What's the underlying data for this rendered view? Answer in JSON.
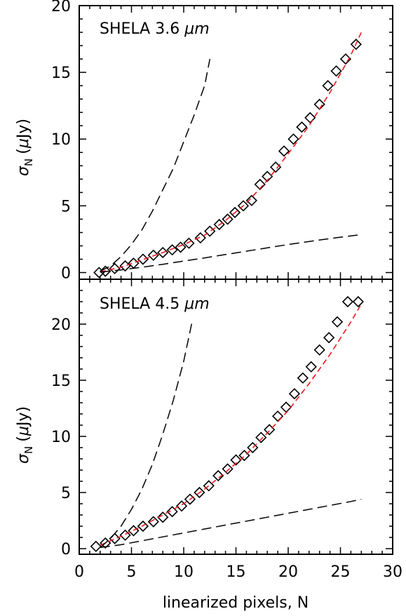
{
  "chart_data": [
    {
      "type": "scatter",
      "title": "SHELA 3.6 μm",
      "title_parts": {
        "prefix": "SHELA 3.6 ",
        "unit": "μm"
      },
      "ylabel": "σN (μJy)",
      "ylabel_parts": {
        "sigma": "σ",
        "sub": "N",
        "open": "(",
        "mu": "μ",
        "unit": "Jy)"
      },
      "xlim": [
        0,
        30
      ],
      "ylim": [
        -0.5,
        20
      ],
      "yticks": [
        0,
        5,
        10,
        15,
        20
      ],
      "series": [
        {
          "style": "diamond-markers",
          "x": [
            1.9,
            2.5,
            3.4,
            4.4,
            5.2,
            6.1,
            7.1,
            8.0,
            8.9,
            9.7,
            10.5,
            11.6,
            12.5,
            13.4,
            14.2,
            14.9,
            15.7,
            16.5,
            17.3,
            18.0,
            18.8,
            19.6,
            20.5,
            21.3,
            22.1,
            23.0,
            23.8,
            24.6,
            25.5,
            26.5
          ],
          "y": [
            0.0,
            0.1,
            0.3,
            0.5,
            0.7,
            1.0,
            1.3,
            1.5,
            1.7,
            1.9,
            2.2,
            2.6,
            3.1,
            3.6,
            4.0,
            4.5,
            5.0,
            5.4,
            6.6,
            7.2,
            7.9,
            9.1,
            10.0,
            10.9,
            11.6,
            12.6,
            14.0,
            15.1,
            16.0,
            17.1
          ]
        },
        {
          "style": "red-dashed-fit",
          "color": "#e8191e",
          "x": [
            2,
            4,
            6,
            8,
            10,
            12,
            14,
            16,
            18,
            20,
            22,
            24,
            26,
            27
          ],
          "y": [
            0.05,
            0.4,
            0.95,
            1.5,
            2.1,
            2.8,
            3.9,
            5.2,
            6.9,
            8.9,
            11.0,
            13.5,
            16.3,
            18.0
          ]
        },
        {
          "style": "black-dashed-upper",
          "x": [
            2,
            3,
            4,
            5,
            6,
            7,
            8,
            9,
            10,
            11,
            12,
            12.5
          ],
          "y": [
            0.1,
            0.5,
            1.2,
            2.1,
            3.2,
            4.6,
            6.2,
            7.8,
            9.8,
            11.8,
            14.0,
            16.0
          ]
        },
        {
          "style": "black-dashed-lower",
          "x": [
            2,
            4,
            6,
            8,
            10,
            12,
            14,
            16,
            18,
            20,
            22,
            24,
            26,
            27
          ],
          "y": [
            0.03,
            0.2,
            0.4,
            0.62,
            0.86,
            1.1,
            1.35,
            1.6,
            1.85,
            2.1,
            2.33,
            2.55,
            2.75,
            2.85
          ]
        }
      ]
    },
    {
      "type": "scatter",
      "title": "SHELA 4.5 μm",
      "title_parts": {
        "prefix": "SHELA 4.5 ",
        "unit": "μm"
      },
      "ylabel": "σN (μJy)",
      "ylabel_parts": {
        "sigma": "σ",
        "sub": "N",
        "open": "(",
        "mu": "μ",
        "unit": "Jy)"
      },
      "xlabel": "linearized pixels, N",
      "xlim": [
        0,
        30
      ],
      "ylim": [
        -0.5,
        24
      ],
      "xticks": [
        0,
        5,
        10,
        15,
        20,
        25,
        30
      ],
      "yticks": [
        0,
        5,
        10,
        15,
        20
      ],
      "series": [
        {
          "style": "diamond-markers",
          "x": [
            1.6,
            2.5,
            3.4,
            4.4,
            5.2,
            6.1,
            7.1,
            8.0,
            8.9,
            9.8,
            10.6,
            11.5,
            12.4,
            13.3,
            14.2,
            15.0,
            15.8,
            16.6,
            17.4,
            18.2,
            19.0,
            19.8,
            20.6,
            21.4,
            22.2,
            23.0,
            23.9,
            24.7,
            25.7,
            26.7
          ],
          "y": [
            0.2,
            0.5,
            0.9,
            1.2,
            1.6,
            2.0,
            2.4,
            2.8,
            3.3,
            3.8,
            4.4,
            5.0,
            5.6,
            6.5,
            7.1,
            7.9,
            8.3,
            9.0,
            9.9,
            10.6,
            11.8,
            12.6,
            13.8,
            15.2,
            16.2,
            17.7,
            18.8,
            20.2,
            22.0,
            22.0
          ]
        },
        {
          "style": "red-dashed-fit",
          "color": "#e8191e",
          "x": [
            2,
            4,
            6,
            8,
            10,
            12,
            14,
            16,
            18,
            20,
            22,
            24,
            26,
            27
          ],
          "y": [
            0.3,
            1.1,
            2.0,
            3.0,
            4.0,
            5.3,
            6.8,
            8.4,
            10.3,
            12.3,
            14.7,
            17.3,
            20.2,
            21.8
          ]
        },
        {
          "style": "black-dashed-upper",
          "x": [
            2,
            3,
            4,
            5,
            6,
            7,
            8,
            9,
            10,
            10.8
          ],
          "y": [
            0.1,
            0.9,
            2.0,
            3.5,
            5.3,
            7.5,
            10.2,
            13.2,
            16.7,
            20.2
          ]
        },
        {
          "style": "black-dashed-lower",
          "x": [
            2,
            4,
            6,
            8,
            10,
            12,
            14,
            16,
            18,
            20,
            22,
            24,
            26,
            27
          ],
          "y": [
            0.1,
            0.35,
            0.7,
            1.05,
            1.4,
            1.75,
            2.1,
            2.45,
            2.8,
            3.15,
            3.5,
            3.85,
            4.2,
            4.4
          ]
        }
      ]
    }
  ]
}
